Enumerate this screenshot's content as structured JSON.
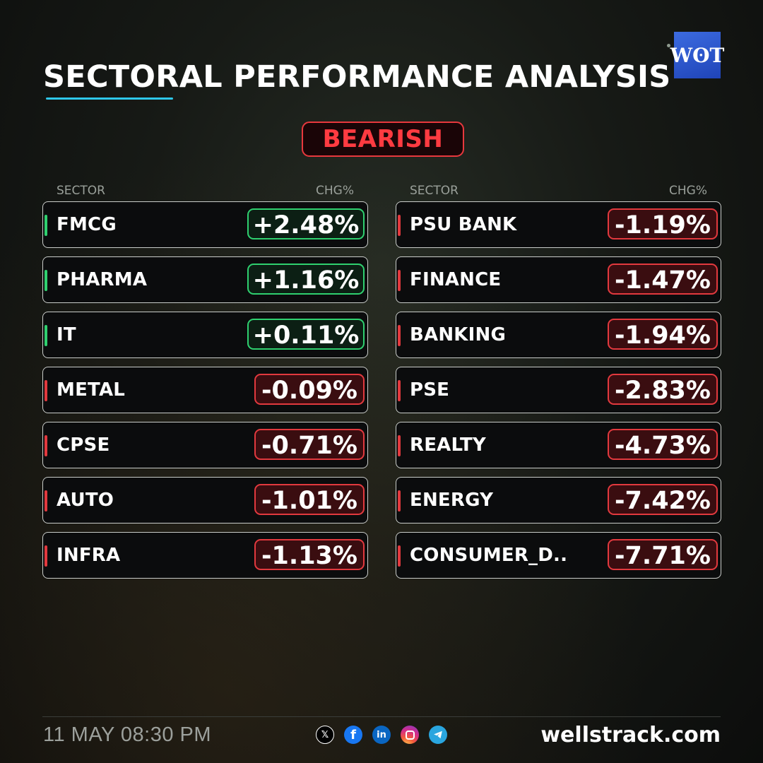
{
  "title": "SECTORAL PERFORMANCE ANALYSIS",
  "logo_text": "WʘT",
  "sentiment": "BEARISH",
  "columns_header": {
    "sector": "SECTOR",
    "change": "CHG%"
  },
  "left_sectors": [
    {
      "name": "FMCG",
      "change": "+2.48%",
      "direction": "pos"
    },
    {
      "name": "PHARMA",
      "change": "+1.16%",
      "direction": "pos"
    },
    {
      "name": "IT",
      "change": "+0.11%",
      "direction": "pos"
    },
    {
      "name": "METAL",
      "change": "-0.09%",
      "direction": "neg"
    },
    {
      "name": "CPSE",
      "change": "-0.71%",
      "direction": "neg"
    },
    {
      "name": "AUTO",
      "change": "-1.01%",
      "direction": "neg"
    },
    {
      "name": "INFRA",
      "change": "-1.13%",
      "direction": "neg"
    }
  ],
  "right_sectors": [
    {
      "name": "PSU BANK",
      "change": "-1.19%",
      "direction": "neg"
    },
    {
      "name": "FINANCE",
      "change": "-1.47%",
      "direction": "neg"
    },
    {
      "name": "BANKING",
      "change": "-1.94%",
      "direction": "neg"
    },
    {
      "name": "PSE",
      "change": "-2.83%",
      "direction": "neg"
    },
    {
      "name": "REALTY",
      "change": "-4.73%",
      "direction": "neg"
    },
    {
      "name": "ENERGY",
      "change": "-7.42%",
      "direction": "neg"
    },
    {
      "name": "CONSUMER_D..",
      "change": "-7.71%",
      "direction": "neg"
    }
  ],
  "footer": {
    "datetime": "11 MAY 08:30 PM",
    "website": "wellstrack.com",
    "social_icons": [
      "x-icon",
      "facebook-icon",
      "linkedin-icon",
      "instagram-icon",
      "telegram-icon"
    ]
  },
  "colors": {
    "positive": "#2fd06f",
    "negative": "#e2393e",
    "accent": "#2ec8ea",
    "logo": "#2f5ad0"
  }
}
